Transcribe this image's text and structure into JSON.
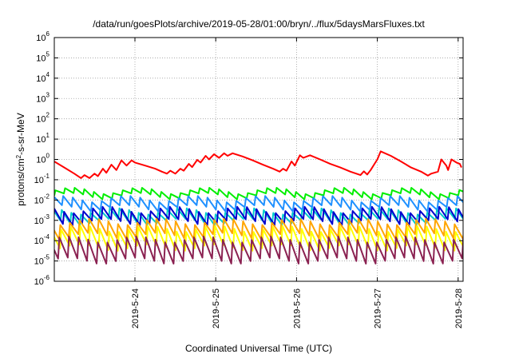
{
  "chart_data": {
    "type": "line",
    "title": "/data/run/goesPlots/archive/2019-05-28/01:00/bryn/../flux/5daysMarsFluxes.txt",
    "xlabel": "Coordinated Universal Time (UTC)",
    "ylabel": "protons/cm²-s-sr-MeV",
    "ylabel_parts": {
      "base": "protons/cm",
      "sup": "2",
      "rest": "-s-sr-MeV"
    },
    "yscale": "log",
    "ylim": [
      1e-06,
      1000000.0
    ],
    "y_ticks": [
      {
        "base": "10",
        "exp": "-6"
      },
      {
        "base": "10",
        "exp": "-5"
      },
      {
        "base": "10",
        "exp": "-4"
      },
      {
        "base": "10",
        "exp": "-3"
      },
      {
        "base": "10",
        "exp": "-2"
      },
      {
        "base": "10",
        "exp": "-1"
      },
      {
        "base": "10",
        "exp": "0"
      },
      {
        "base": "10",
        "exp": "1"
      },
      {
        "base": "10",
        "exp": "2"
      },
      {
        "base": "10",
        "exp": "3"
      },
      {
        "base": "10",
        "exp": "4"
      },
      {
        "base": "10",
        "exp": "5"
      },
      {
        "base": "10",
        "exp": "6"
      }
    ],
    "xlim": [
      "2019-05-23 00:00",
      "2019-05-28 01:00"
    ],
    "x_ticks": [
      "2019-5-24",
      "2019-5-25",
      "2019-5-26",
      "2019-5-27",
      "2019-5-28"
    ],
    "grid": true,
    "series": [
      {
        "color": "#ff0000",
        "points": [
          [
            "05-23 00:00",
            0.8
          ],
          [
            "05-23 03:00",
            0.4
          ],
          [
            "05-23 06:00",
            0.2
          ],
          [
            "05-23 08:00",
            0.12
          ],
          [
            "05-23 09:00",
            0.17
          ],
          [
            "05-23 10:30",
            0.12
          ],
          [
            "05-23 12:00",
            0.2
          ],
          [
            "05-23 13:00",
            0.15
          ],
          [
            "05-23 14:30",
            0.35
          ],
          [
            "05-23 15:30",
            0.22
          ],
          [
            "05-23 17:00",
            0.55
          ],
          [
            "05-23 18:30",
            0.3
          ],
          [
            "05-23 20:00",
            0.9
          ],
          [
            "05-23 21:30",
            0.5
          ],
          [
            "05-23 23:00",
            0.9
          ],
          [
            "05-24 00:00",
            0.7
          ],
          [
            "05-24 03:00",
            0.5
          ],
          [
            "05-24 06:00",
            0.35
          ],
          [
            "05-24 08:00",
            0.25
          ],
          [
            "05-24 09:30",
            0.2
          ],
          [
            "05-24 10:30",
            0.28
          ],
          [
            "05-24 12:00",
            0.2
          ],
          [
            "05-24 13:30",
            0.35
          ],
          [
            "05-24 14:30",
            0.28
          ],
          [
            "05-24 16:00",
            0.6
          ],
          [
            "05-24 17:00",
            0.42
          ],
          [
            "05-24 18:30",
            0.95
          ],
          [
            "05-24 19:30",
            0.7
          ],
          [
            "05-24 21:00",
            1.5
          ],
          [
            "05-24 22:00",
            1.0
          ],
          [
            "05-24 23:30",
            1.8
          ],
          [
            "05-25 01:00",
            1.2
          ],
          [
            "05-25 02:30",
            2.0
          ],
          [
            "05-25 03:30",
            1.5
          ],
          [
            "05-25 05:00",
            2.0
          ],
          [
            "05-25 08:00",
            1.4
          ],
          [
            "05-25 11:00",
            0.9
          ],
          [
            "05-25 14:00",
            0.55
          ],
          [
            "05-25 17:00",
            0.35
          ],
          [
            "05-25 19:00",
            0.25
          ],
          [
            "05-25 20:00",
            0.35
          ],
          [
            "05-25 21:00",
            0.28
          ],
          [
            "05-25 22:30",
            0.8
          ],
          [
            "05-25 23:30",
            0.5
          ],
          [
            "05-26 01:00",
            1.6
          ],
          [
            "05-26 02:00",
            1.2
          ],
          [
            "05-26 04:00",
            1.6
          ],
          [
            "05-26 07:00",
            1.0
          ],
          [
            "05-26 10:00",
            0.6
          ],
          [
            "05-26 13:00",
            0.4
          ],
          [
            "05-26 16:00",
            0.25
          ],
          [
            "05-26 19:00",
            0.17
          ],
          [
            "05-26 20:00",
            0.26
          ],
          [
            "05-26 21:00",
            0.18
          ],
          [
            "05-26 22:00",
            0.3
          ],
          [
            "05-26 23:00",
            0.55
          ],
          [
            "05-27 00:00",
            1.0
          ],
          [
            "05-27 01:00",
            2.5
          ],
          [
            "05-27 04:00",
            1.5
          ],
          [
            "05-27 07:00",
            0.8
          ],
          [
            "05-27 10:00",
            0.4
          ],
          [
            "05-27 13:00",
            0.25
          ],
          [
            "05-27 15:00",
            0.16
          ],
          [
            "05-27 16:00",
            0.2
          ],
          [
            "05-27 18:00",
            0.25
          ],
          [
            "05-27 19:00",
            1.0
          ],
          [
            "05-27 20:30",
            0.5
          ],
          [
            "05-27 21:00",
            0.3
          ],
          [
            "05-27 22:00",
            1.0
          ],
          [
            "05-27 23:30",
            0.7
          ],
          [
            "05-28 00:30",
            0.6
          ],
          [
            "05-28 01:00",
            0.4
          ]
        ]
      },
      {
        "color": "#00ee00",
        "level": 0.03,
        "drop": 0.55,
        "phase": 0
      },
      {
        "color": "#1e90ff",
        "level": 0.012,
        "drop": 0.35,
        "phase": 0.2
      },
      {
        "color": "#00cccc",
        "level": 0.003,
        "drop": 0.3,
        "phase": 0.35
      },
      {
        "color": "#0000cd",
        "level": 0.0035,
        "drop": 0.25,
        "phase": 0.1
      },
      {
        "color": "#ffa500",
        "level": 0.0009,
        "drop": 0.2,
        "phase": 0.5
      },
      {
        "color": "#ffff00",
        "level": 0.0004,
        "drop": 0.12,
        "phase": 0.4
      },
      {
        "color": "#8b2252",
        "level": 0.00012,
        "drop": 0.09,
        "phase": 0.6
      }
    ]
  }
}
